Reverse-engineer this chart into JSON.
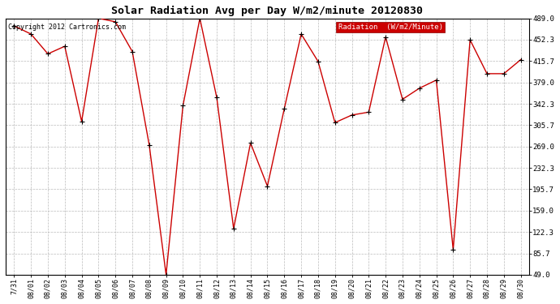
{
  "title": "Solar Radiation Avg per Day W/m2/minute 20120830",
  "copyright": "Copyright 2012 Cartronics.com",
  "legend_label": "Radiation  (W/m2/Minute)",
  "tick_labels": [
    "7/31",
    "08/01",
    "08/02",
    "08/03",
    "08/04",
    "08/05",
    "08/06",
    "08/07",
    "08/08",
    "08/09",
    "08/10",
    "08/11",
    "08/12",
    "08/13",
    "08/14",
    "08/15",
    "08/16",
    "08/17",
    "08/18",
    "08/19",
    "08/20",
    "08/21",
    "08/22",
    "08/23",
    "08/24",
    "08/25",
    "08/26",
    "08/27",
    "08/28",
    "08/29",
    "08/30"
  ],
  "values": [
    476,
    462,
    428,
    441,
    312,
    489,
    483,
    432,
    272,
    49,
    339,
    489,
    353,
    128,
    275,
    201,
    334,
    462,
    415,
    310,
    323,
    328,
    457,
    350,
    369,
    383,
    92,
    452,
    394,
    394,
    418
  ],
  "ylim": [
    49.0,
    489.0
  ],
  "yticks": [
    49.0,
    85.7,
    122.3,
    159.0,
    195.7,
    232.3,
    269.0,
    305.7,
    342.3,
    379.0,
    415.7,
    452.3,
    489.0
  ],
  "line_color": "#cc0000",
  "marker_color": "#000000",
  "bg_color": "#ffffff",
  "grid_color": "#bbbbbb",
  "title_fontsize": 9.5,
  "copyright_fontsize": 6.0,
  "legend_fontsize": 6.5,
  "tick_fontsize": 6.0,
  "ytick_fontsize": 6.5,
  "legend_bg": "#cc0000",
  "legend_text_color": "#ffffff"
}
